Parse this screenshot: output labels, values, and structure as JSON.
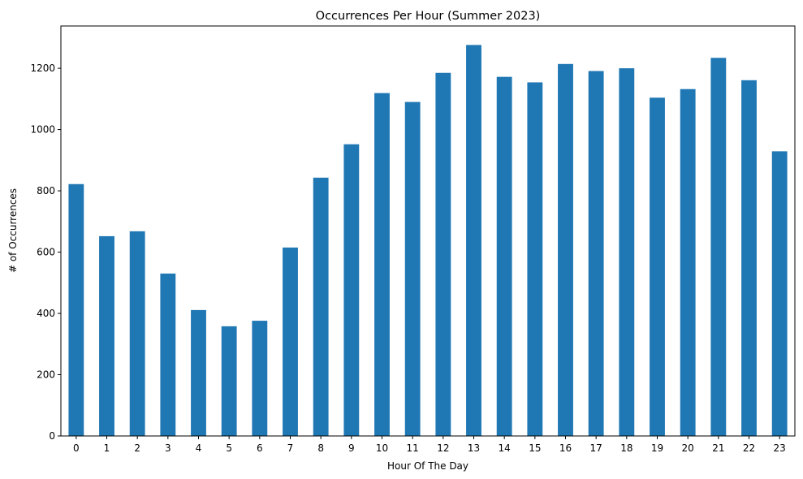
{
  "chart_data": {
    "type": "bar",
    "title": "Occurrences Per Hour (Summer 2023)",
    "xlabel": "Hour Of The Day",
    "ylabel": "# of Occurrences",
    "categories": [
      "0",
      "1",
      "2",
      "3",
      "4",
      "5",
      "6",
      "7",
      "8",
      "9",
      "10",
      "11",
      "12",
      "13",
      "14",
      "15",
      "16",
      "17",
      "18",
      "19",
      "20",
      "21",
      "22",
      "23"
    ],
    "values": [
      822,
      652,
      668,
      530,
      411,
      358,
      376,
      615,
      843,
      952,
      1119,
      1090,
      1185,
      1276,
      1172,
      1154,
      1214,
      1191,
      1200,
      1104,
      1132,
      1234,
      1161,
      929
    ],
    "ylim": [
      0,
      1338
    ],
    "yticks": [
      0,
      200,
      400,
      600,
      800,
      1000,
      1200
    ],
    "grid": false,
    "legend": "none",
    "bar_color": "#1f77b4"
  }
}
